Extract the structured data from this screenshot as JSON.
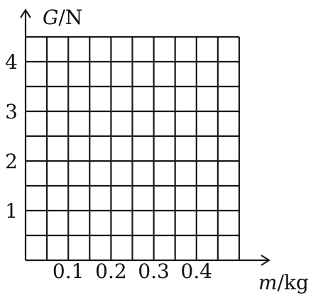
{
  "chart_data": {
    "type": "line",
    "title": "",
    "xlabel": "m/kg",
    "xlabel_var": "m",
    "xlabel_unit": "/kg",
    "ylabel": "G/N",
    "ylabel_var": "G",
    "ylabel_unit": "/N",
    "xlim": [
      0,
      0.5
    ],
    "ylim": [
      0,
      4.5
    ],
    "x_ticks": [
      "0.1",
      "0.2",
      "0.3",
      "0.4"
    ],
    "x_tick_values": [
      0.1,
      0.2,
      0.3,
      0.4
    ],
    "y_ticks": [
      "1",
      "2",
      "3",
      "4"
    ],
    "y_tick_values": [
      1,
      2,
      3,
      4
    ],
    "x_grid_step": 0.05,
    "y_grid_step": 0.5,
    "grid": true,
    "series": []
  }
}
